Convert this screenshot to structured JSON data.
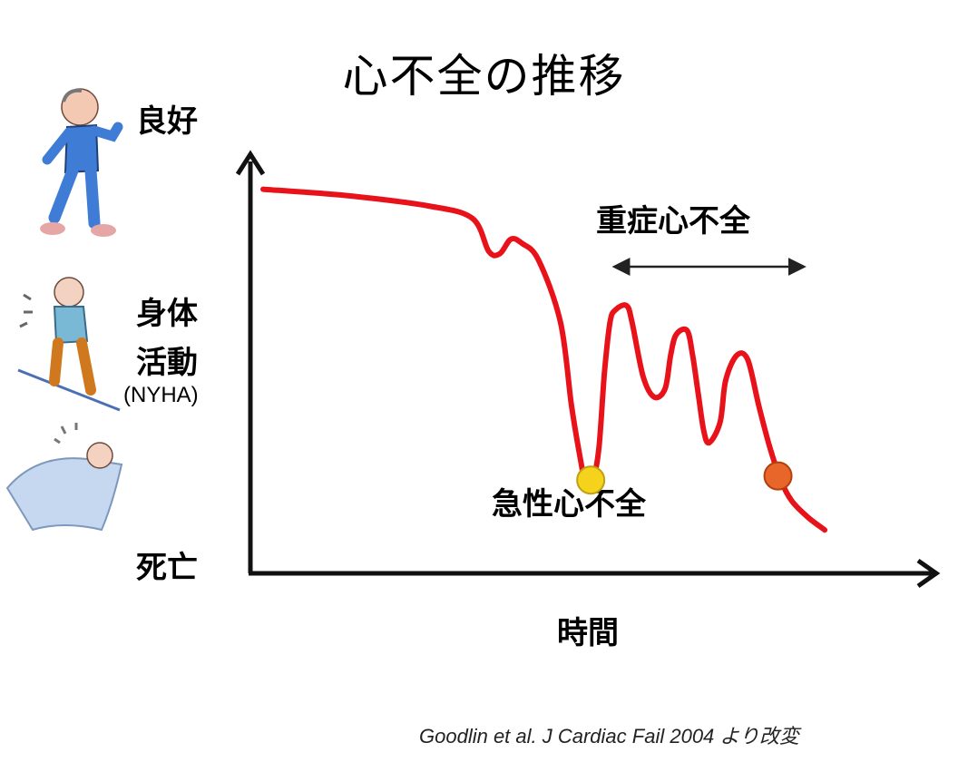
{
  "chart_data": {
    "type": "line",
    "title": "心不全の推移",
    "y_axis": {
      "top_label": "良好",
      "middle_label_line1": "身体",
      "middle_label_line2": "活動",
      "middle_sublabel": "(NYHA)",
      "bottom_label": "死亡"
    },
    "x_axis": {
      "label": "時間"
    },
    "xlim": [
      0,
      100
    ],
    "ylim": [
      0,
      100
    ],
    "grid": false,
    "legend": "none",
    "series": [
      {
        "color": "#e8121a",
        "points": [
          [
            0,
            92
          ],
          [
            15,
            90.5
          ],
          [
            30,
            88
          ],
          [
            38,
            85
          ],
          [
            41,
            77
          ],
          [
            43,
            76.5
          ],
          [
            45,
            80
          ],
          [
            47,
            79
          ],
          [
            50,
            75
          ],
          [
            54,
            60
          ],
          [
            56,
            40
          ],
          [
            57.5,
            28
          ],
          [
            58.5,
            22
          ],
          [
            60,
            23
          ],
          [
            61,
            30
          ],
          [
            62,
            48
          ],
          [
            63,
            60
          ],
          [
            64,
            63
          ],
          [
            66,
            64
          ],
          [
            67,
            60
          ],
          [
            69,
            47
          ],
          [
            71,
            42
          ],
          [
            73,
            44
          ],
          [
            74,
            52
          ],
          [
            75,
            57
          ],
          [
            77,
            58
          ],
          [
            78,
            52
          ],
          [
            79,
            43
          ],
          [
            80,
            34
          ],
          [
            81,
            31
          ],
          [
            83,
            36
          ],
          [
            84,
            46
          ],
          [
            86,
            52
          ],
          [
            88,
            51
          ],
          [
            90,
            40
          ],
          [
            92,
            30
          ],
          [
            94,
            22
          ],
          [
            96,
            17
          ],
          [
            99,
            13
          ],
          [
            102,
            10
          ]
        ]
      }
    ],
    "markers": [
      {
        "name": "acute",
        "x": 59.5,
        "y": 22,
        "color": "#f5d21b"
      },
      {
        "name": "late",
        "x": 93.5,
        "y": 23,
        "color": "#e8662a"
      }
    ],
    "annotations": {
      "severe_label": "重症心不全",
      "severe_range": [
        64,
        98
      ],
      "acute_label": "急性心不全"
    },
    "credit": "Goodlin et al. J Cardiac Fail 2004 より改変"
  },
  "icons": [
    "healthy-walking-person-icon",
    "breathless-climbing-person-icon",
    "bedridden-person-icon"
  ]
}
